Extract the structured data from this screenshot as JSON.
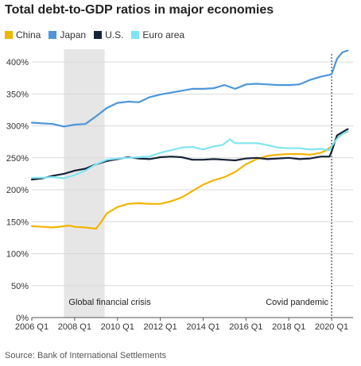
{
  "chart_data": {
    "type": "line",
    "title": "Total debt-to-GDP ratios in major economies",
    "source": "Source: Bank of International Settlements",
    "xlabel": "",
    "ylabel": "",
    "xlim": [
      2006.0,
      2021.0
    ],
    "ylim": [
      0,
      420
    ],
    "y_ticks": [
      "0%",
      "50%",
      "100%",
      "150%",
      "200%",
      "250%",
      "300%",
      "350%",
      "400%"
    ],
    "x_ticks": [
      "2006 Q1",
      "2008 Q1",
      "2010 Q1",
      "2012 Q1",
      "2014 Q1",
      "2016 Q1",
      "2018 Q1",
      "2020 Q1"
    ],
    "grid": true,
    "legend_position": "top-left",
    "annotations": [
      {
        "label": "Global financial crisis",
        "x_start": 2007.5,
        "x_end": 2009.4
      },
      {
        "label": "Covid pandemic",
        "x": 2020.0
      }
    ],
    "series": [
      {
        "name": "China",
        "color": "#f2b400",
        "x": [
          2006.0,
          2006.5,
          2007.0,
          2007.5,
          2007.75,
          2008.0,
          2008.5,
          2008.75,
          2009.0,
          2009.25,
          2009.5,
          2010.0,
          2010.5,
          2011.0,
          2011.5,
          2012.0,
          2012.5,
          2013.0,
          2013.5,
          2014.0,
          2014.5,
          2015.0,
          2015.5,
          2016.0,
          2016.5,
          2017.0,
          2017.5,
          2018.0,
          2018.5,
          2019.0,
          2019.5,
          2019.75,
          2020.0,
          2020.25,
          2020.5,
          2020.75
        ],
        "values": [
          143,
          142,
          141,
          143,
          144,
          142,
          141,
          140,
          139,
          150,
          163,
          173,
          178,
          179,
          178,
          178,
          182,
          188,
          198,
          208,
          215,
          220,
          228,
          240,
          248,
          253,
          255,
          256,
          256,
          255,
          258,
          262,
          268,
          281,
          287,
          291
        ]
      },
      {
        "name": "Japan",
        "color": "#4d96d8",
        "x": [
          2006.0,
          2006.5,
          2007.0,
          2007.5,
          2008.0,
          2008.5,
          2009.0,
          2009.5,
          2010.0,
          2010.5,
          2011.0,
          2011.5,
          2012.0,
          2012.5,
          2013.0,
          2013.5,
          2014.0,
          2014.5,
          2015.0,
          2015.5,
          2016.0,
          2016.5,
          2017.0,
          2017.5,
          2018.0,
          2018.5,
          2019.0,
          2019.5,
          2019.9,
          2020.0,
          2020.25,
          2020.5,
          2020.75
        ],
        "values": [
          305,
          304,
          303,
          299,
          302,
          303,
          315,
          328,
          336,
          338,
          337,
          345,
          349,
          352,
          355,
          358,
          358,
          359,
          364,
          358,
          365,
          366,
          365,
          364,
          364,
          365,
          372,
          377,
          380,
          381,
          405,
          415,
          418
        ]
      },
      {
        "name": "U.S.",
        "color": "#172339",
        "x": [
          2006.0,
          2006.5,
          2007.0,
          2007.5,
          2008.0,
          2008.5,
          2009.0,
          2009.5,
          2010.0,
          2010.5,
          2011.0,
          2011.5,
          2012.0,
          2012.5,
          2013.0,
          2013.5,
          2014.0,
          2014.5,
          2015.0,
          2015.5,
          2016.0,
          2016.5,
          2017.0,
          2017.5,
          2018.0,
          2018.5,
          2019.0,
          2019.5,
          2019.9,
          2020.0,
          2020.25,
          2020.5,
          2020.75
        ],
        "values": [
          216,
          218,
          222,
          225,
          230,
          233,
          240,
          245,
          248,
          251,
          249,
          248,
          251,
          252,
          251,
          247,
          247,
          248,
          247,
          246,
          249,
          250,
          248,
          249,
          250,
          248,
          249,
          252,
          252,
          260,
          285,
          290,
          295
        ]
      },
      {
        "name": "Euro area",
        "color": "#7fe5f2",
        "x": [
          2006.0,
          2006.5,
          2007.0,
          2007.5,
          2008.0,
          2008.5,
          2009.0,
          2009.5,
          2010.0,
          2010.5,
          2011.0,
          2011.5,
          2012.0,
          2012.5,
          2013.0,
          2013.5,
          2014.0,
          2014.5,
          2014.9,
          2015.25,
          2015.5,
          2016.0,
          2016.5,
          2017.0,
          2017.5,
          2018.0,
          2018.5,
          2019.0,
          2019.5,
          2019.9,
          2020.0,
          2020.25,
          2020.5,
          2020.75
        ],
        "values": [
          219,
          219,
          220,
          218,
          223,
          230,
          240,
          247,
          249,
          250,
          251,
          252,
          258,
          262,
          266,
          267,
          263,
          268,
          270,
          279,
          273,
          273,
          273,
          270,
          266,
          265,
          265,
          263,
          264,
          262,
          268,
          280,
          287,
          292
        ]
      }
    ]
  }
}
